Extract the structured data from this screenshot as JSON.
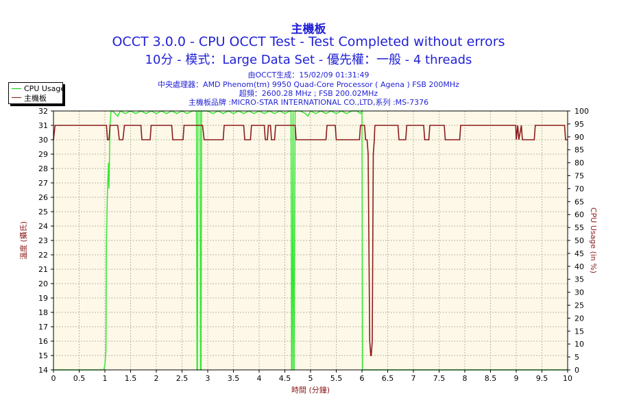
{
  "header": {
    "title": "主機板",
    "line1": "OCCT 3.0.0 - CPU OCCT Test - Test Completed without errors",
    "line2": "10分 - 模式：Large Data Set - 優先權：一般 - 4 threads",
    "info": [
      "由OCCT生成：15/02/09 01:31:49",
      "中央處理器：AMD Phenom(tm) 9950 Quad-Core Processor ( Agena ) FSB 200MHz",
      "超頻：2600.28 MHz ; FSB 200.02MHz",
      "主機板品牌 :MICRO-STAR INTERNATIONAL CO.,LTD,系列 :MS-7376"
    ]
  },
  "legend": {
    "items": [
      {
        "label": "CPU Usage",
        "color": "#00cc00"
      },
      {
        "label": "主機板",
        "color": "#8b1a1a"
      }
    ]
  },
  "colors": {
    "plot_bg": "#fdf8e8",
    "grid": "#b8b8a0",
    "cpu": "#33e633",
    "temp": "#8b1a1a",
    "axis_text": "#8b1a1a",
    "title": "#1f1fd6"
  },
  "chart_data": {
    "type": "line",
    "xlabel": "時間 (分鐘)",
    "ylabel_left": "溫度 (攝氏)",
    "ylabel_right": "CPU Usage (in %)",
    "xlim": [
      0,
      10
    ],
    "ylim_left": [
      14,
      32
    ],
    "ylim_right": [
      0,
      100
    ],
    "x_ticks": [
      "0",
      "0.5",
      "1",
      "1.5",
      "2",
      "2.5",
      "3",
      "3.5",
      "4",
      "4.5",
      "5",
      "5.5",
      "6",
      "6.5",
      "7",
      "7.5",
      "8",
      "8.5",
      "9",
      "9.5",
      "10"
    ],
    "y_ticks_left": [
      "14",
      "15",
      "16",
      "17",
      "18",
      "19",
      "20",
      "21",
      "22",
      "23",
      "24",
      "25",
      "26",
      "27",
      "28",
      "29",
      "30",
      "31",
      "32"
    ],
    "y_ticks_right": [
      "0",
      "5",
      "10",
      "15",
      "20",
      "25",
      "30",
      "35",
      "40",
      "45",
      "50",
      "55",
      "60",
      "65",
      "70",
      "75",
      "80",
      "85",
      "90",
      "95",
      "100"
    ],
    "grid": true,
    "legend_position": "top-left",
    "series": [
      {
        "name": "CPU Usage",
        "axis": "right",
        "x": [
          0,
          0.98,
          1.0,
          1.02,
          1.03,
          1.05,
          1.07,
          1.08,
          1.1,
          1.12,
          1.15,
          1.2,
          1.25,
          1.3,
          1.4,
          1.5,
          1.6,
          1.7,
          1.8,
          1.9,
          2.0,
          2.1,
          2.2,
          2.3,
          2.4,
          2.5,
          2.6,
          2.7,
          2.78,
          2.79,
          2.8,
          2.81,
          2.85,
          2.86,
          2.87,
          2.88,
          2.9,
          3.0,
          3.1,
          3.2,
          3.3,
          3.4,
          3.5,
          3.6,
          3.7,
          3.8,
          3.9,
          4.0,
          4.1,
          4.2,
          4.3,
          4.4,
          4.5,
          4.6,
          4.62,
          4.63,
          4.64,
          4.66,
          4.67,
          4.68,
          4.7,
          4.8,
          4.9,
          4.95,
          5.0,
          5.1,
          5.2,
          5.3,
          5.4,
          5.5,
          5.6,
          5.7,
          5.8,
          5.9,
          5.97,
          6.0,
          6.01,
          6.02,
          6.1,
          6.5,
          7.0,
          8.0,
          9.0,
          10.0
        ],
        "values": [
          0,
          0,
          2,
          7,
          50,
          70,
          80,
          70,
          95,
          100,
          100,
          99,
          98,
          100,
          99,
          100,
          99,
          100,
          99,
          100,
          99,
          100,
          99,
          100,
          99,
          100,
          99,
          100,
          100,
          0,
          0,
          100,
          100,
          0,
          0,
          100,
          100,
          100,
          99,
          100,
          99,
          100,
          99,
          100,
          99,
          100,
          99,
          100,
          99,
          100,
          99,
          100,
          99,
          100,
          100,
          0,
          0,
          100,
          0,
          0,
          100,
          100,
          99,
          98,
          100,
          99,
          100,
          99,
          100,
          99,
          100,
          99,
          100,
          100,
          99,
          100,
          0,
          0,
          0,
          0,
          0,
          0,
          0,
          0
        ]
      },
      {
        "name": "主機板",
        "axis": "left",
        "x": [
          0,
          0.03,
          1.0,
          1.03,
          1.05,
          1.08,
          1.1,
          1.25,
          1.28,
          1.35,
          1.38,
          1.7,
          1.72,
          1.88,
          1.9,
          2.3,
          2.32,
          2.52,
          2.54,
          2.9,
          2.93,
          3.3,
          3.32,
          3.7,
          3.72,
          3.83,
          3.85,
          4.1,
          4.12,
          4.16,
          4.18,
          4.22,
          4.24,
          4.3,
          4.32,
          4.7,
          4.72,
          5.3,
          5.32,
          5.48,
          5.5,
          5.95,
          5.97,
          6.05,
          6.07,
          6.1,
          6.12,
          6.15,
          6.17,
          6.18,
          6.2,
          6.22,
          6.24,
          6.25,
          6.27,
          6.3,
          6.7,
          6.72,
          6.85,
          6.87,
          7.2,
          7.22,
          7.3,
          7.32,
          7.6,
          7.62,
          7.9,
          7.92,
          8.99,
          9.0,
          9.03,
          9.05,
          9.1,
          9.12,
          9.35,
          9.37,
          9.94,
          9.96,
          10.0
        ],
        "values": [
          30,
          31,
          31,
          31,
          30,
          30,
          31,
          31,
          30,
          30,
          31,
          31,
          30,
          30,
          31,
          31,
          30,
          30,
          31,
          31,
          30,
          30,
          31,
          31,
          30,
          30,
          31,
          31,
          30,
          30,
          31,
          31,
          30,
          30,
          31,
          31,
          30,
          30,
          31,
          31,
          30,
          30,
          31,
          31,
          30,
          30,
          29,
          16,
          15,
          15,
          16,
          29,
          30,
          31,
          31,
          31,
          31,
          30,
          30,
          31,
          31,
          30,
          30,
          31,
          31,
          30,
          30,
          31,
          31,
          30,
          31,
          30,
          31,
          30,
          30,
          31,
          31,
          30,
          30
        ]
      }
    ]
  }
}
